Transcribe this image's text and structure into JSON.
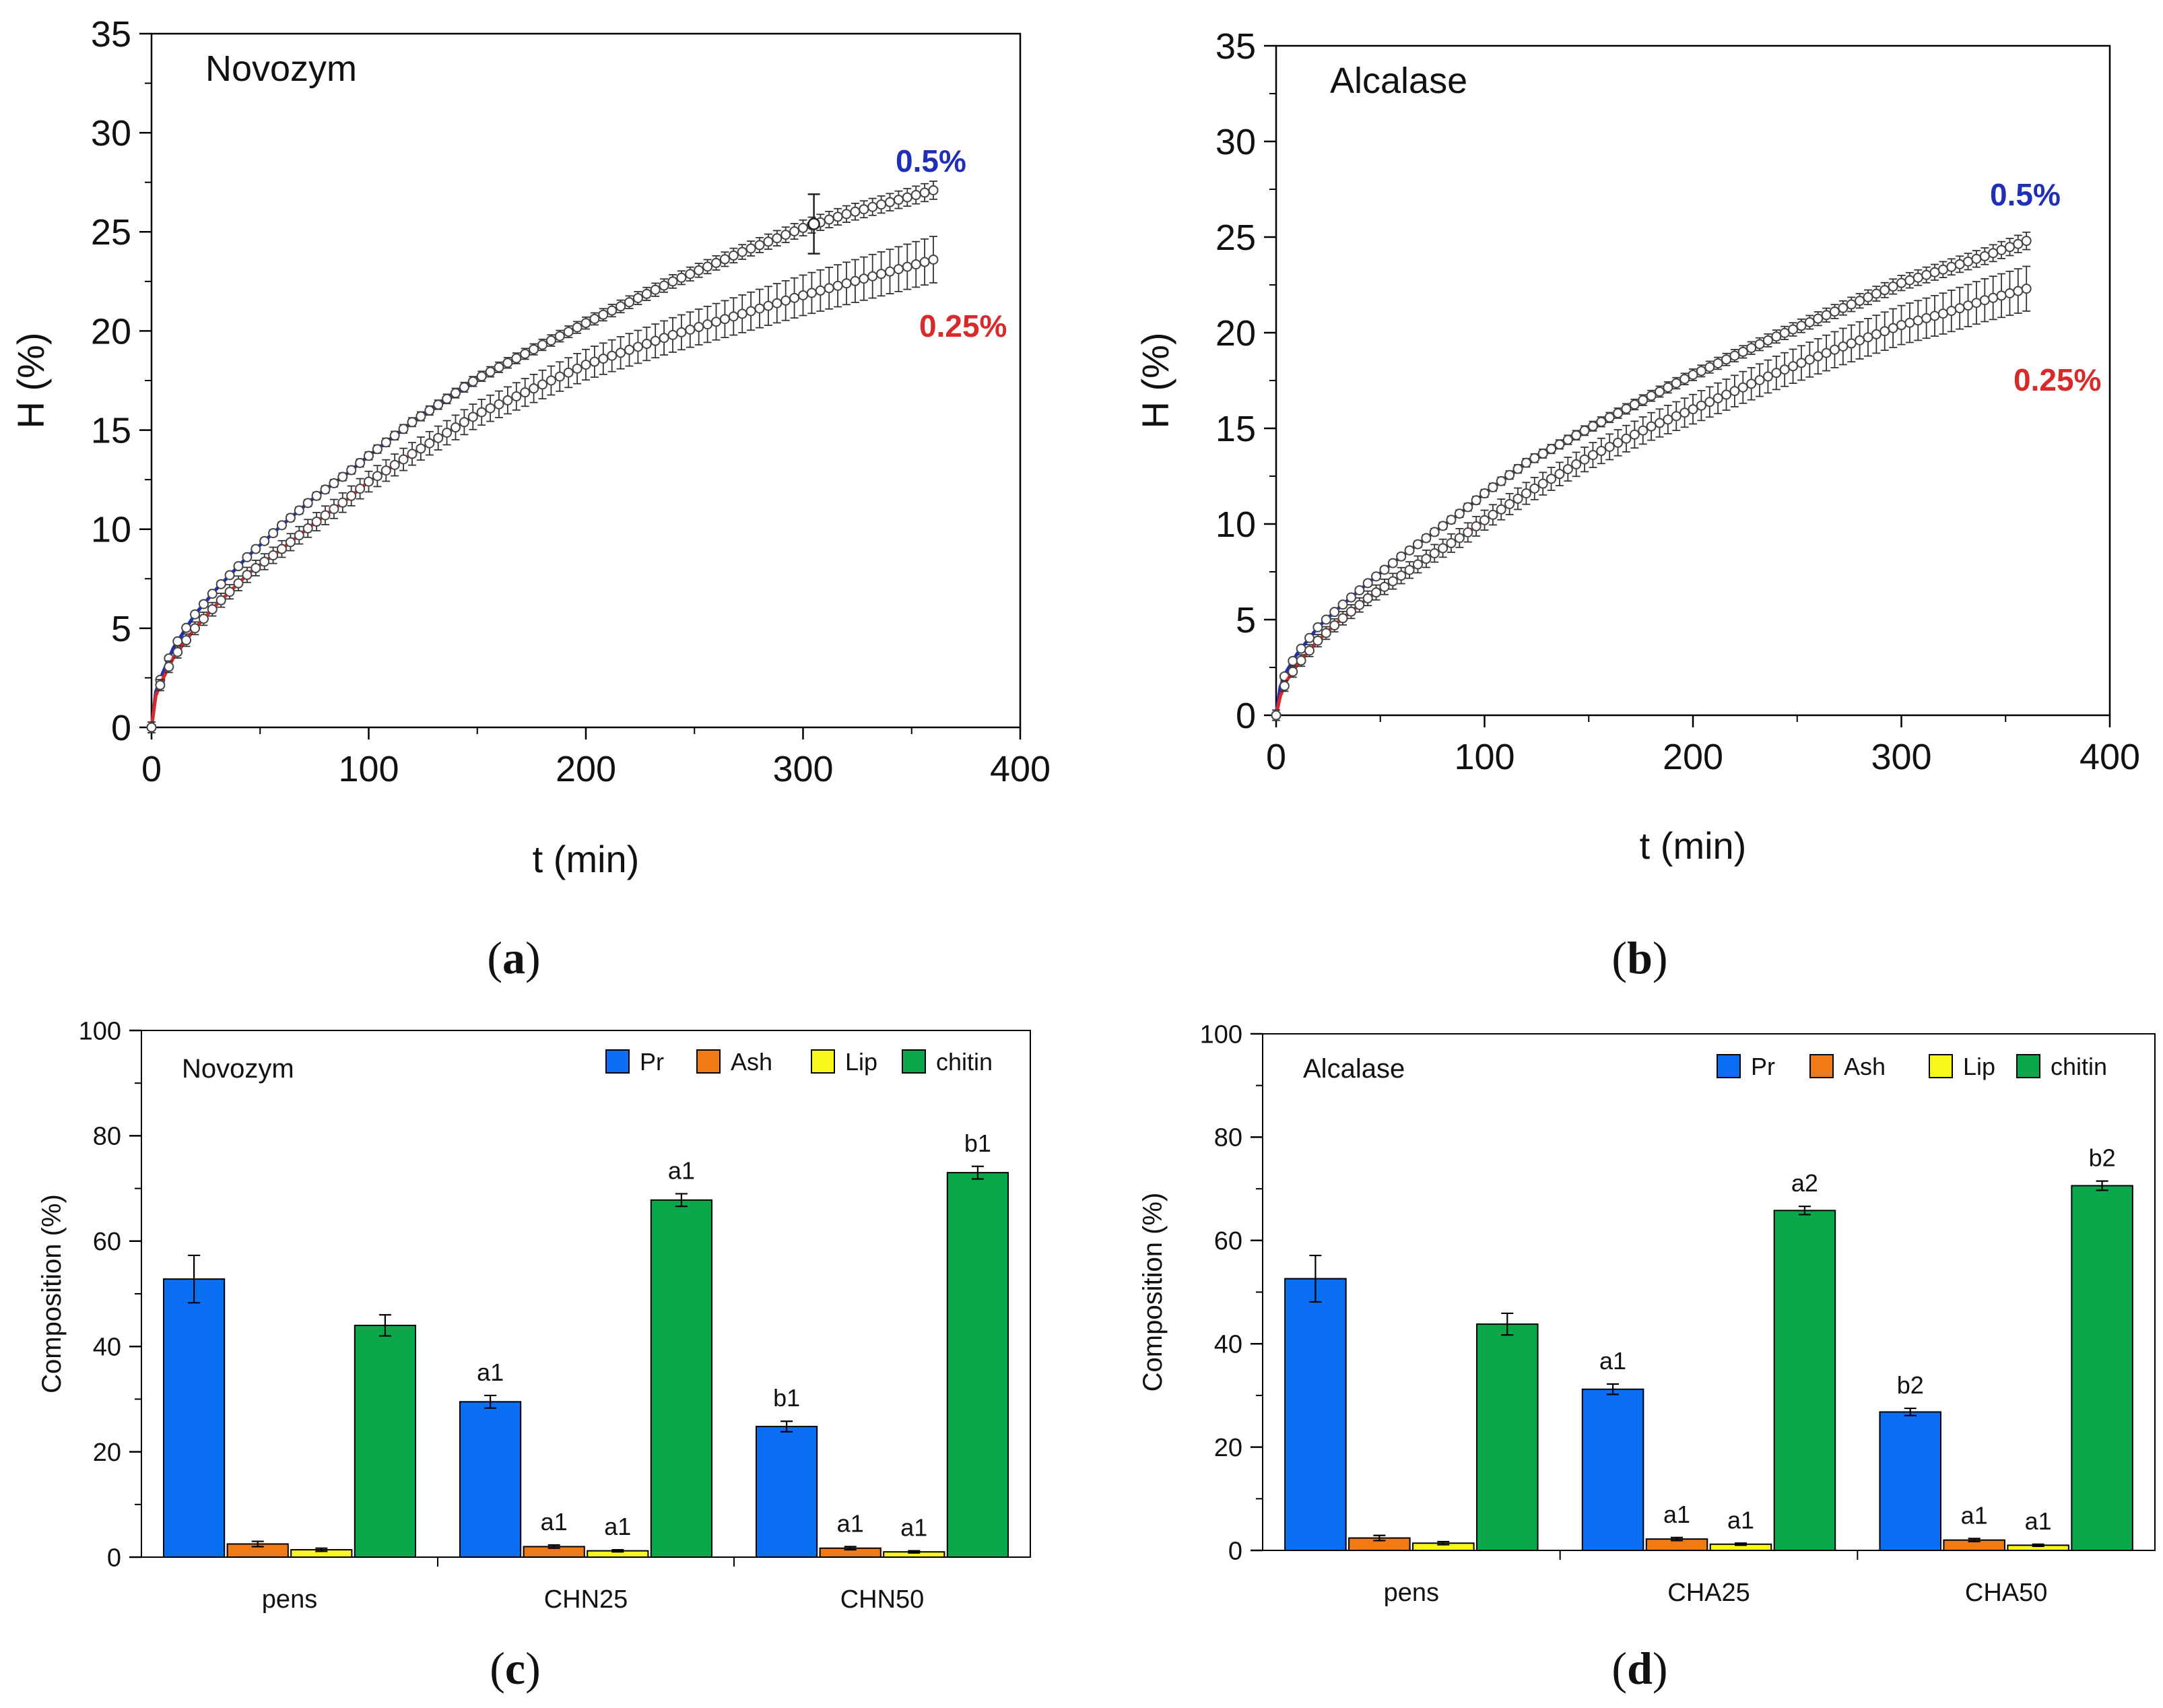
{
  "chart_data": [
    {
      "type": "line",
      "panel": "(a)",
      "panel_letter": "a",
      "title": "Novozym",
      "xlabel": "t (min)",
      "ylabel": "H (%)",
      "xlim": [
        0,
        400
      ],
      "ylim": [
        0,
        35
      ],
      "xticks": [
        0,
        100,
        200,
        300,
        400
      ],
      "yticks": [
        0,
        5,
        10,
        15,
        20,
        25,
        30,
        35
      ],
      "legend": "inline labels at right end of curves",
      "series": [
        {
          "name": "0.5%",
          "color": "#1f2fb8",
          "x": [
            0,
            2,
            5,
            10,
            20,
            30,
            45,
            60,
            75,
            90,
            100,
            120,
            150,
            180,
            200,
            240,
            270,
            300,
            320,
            340,
            360
          ],
          "y": [
            0,
            1.8,
            2.7,
            4.0,
            5.7,
            7.0,
            8.7,
            10.2,
            11.6,
            12.8,
            13.7,
            15.4,
            17.6,
            19.3,
            20.4,
            22.5,
            23.9,
            25.2,
            25.9,
            26.5,
            27.1
          ]
        },
        {
          "name": "0.25%",
          "color": "#d82a2a",
          "x": [
            0,
            2,
            5,
            10,
            20,
            30,
            45,
            60,
            75,
            90,
            100,
            120,
            150,
            180,
            200,
            240,
            270,
            300,
            320,
            340,
            360
          ],
          "y": [
            0,
            1.6,
            2.4,
            3.5,
            5.0,
            6.2,
            7.8,
            9.0,
            10.3,
            11.5,
            12.4,
            13.8,
            15.8,
            17.3,
            18.3,
            19.8,
            20.8,
            21.8,
            22.4,
            23.0,
            23.6
          ]
        }
      ],
      "error_bar_points": [
        {
          "series": "0.5%",
          "x": 305,
          "y": 25.4,
          "err": 1.5
        }
      ]
    },
    {
      "type": "line",
      "panel": "(b)",
      "panel_letter": "b",
      "title": "Alcalase",
      "xlabel": "t (min)",
      "ylabel": "H (%)",
      "xlim": [
        0,
        400
      ],
      "ylim": [
        0,
        35
      ],
      "xticks": [
        0,
        100,
        200,
        300,
        400
      ],
      "yticks": [
        0,
        5,
        10,
        15,
        20,
        25,
        30,
        35
      ],
      "legend": "inline labels at right end of curves",
      "series": [
        {
          "name": "0.5%",
          "color": "#1f2fb8",
          "x": [
            0,
            2,
            5,
            10,
            20,
            30,
            45,
            60,
            75,
            90,
            100,
            120,
            150,
            180,
            200,
            240,
            270,
            300,
            320,
            340,
            360
          ],
          "y": [
            0,
            1.5,
            2.3,
            3.2,
            4.6,
            5.6,
            7.0,
            8.3,
            9.5,
            10.7,
            11.6,
            13.2,
            15.0,
            16.7,
            17.8,
            19.8,
            21.2,
            22.6,
            23.3,
            24.0,
            24.8
          ]
        },
        {
          "name": "0.25%",
          "color": "#d82a2a",
          "x": [
            0,
            2,
            5,
            10,
            20,
            30,
            45,
            60,
            75,
            90,
            100,
            120,
            150,
            180,
            200,
            240,
            270,
            300,
            320,
            340,
            360
          ],
          "y": [
            0,
            1.0,
            1.8,
            2.6,
            3.9,
            4.9,
            6.2,
            7.3,
            8.4,
            9.4,
            10.2,
            11.6,
            13.5,
            15.1,
            16.0,
            17.9,
            19.2,
            20.4,
            21.0,
            21.7,
            22.3
          ]
        }
      ]
    },
    {
      "type": "bar",
      "panel": "(c)",
      "panel_letter": "c",
      "title": "Novozym",
      "xlabel": "",
      "ylabel": "Composition (%)",
      "ylim": [
        0,
        100
      ],
      "yticks": [
        0,
        20,
        40,
        60,
        80,
        100
      ],
      "legend": "top-right",
      "categories": [
        "pens",
        "CHN25",
        "CHN50"
      ],
      "series": [
        {
          "name": "Pr",
          "color": "#0b6ff4",
          "values": [
            52.8,
            29.5,
            24.8
          ],
          "errors": [
            4.5,
            1.2,
            1.0
          ],
          "labels": [
            "",
            "a1",
            "b1"
          ]
        },
        {
          "name": "Ash",
          "color": "#f07a16",
          "values": [
            2.5,
            2.0,
            1.7
          ],
          "errors": [
            0.5,
            0.3,
            0.3
          ],
          "labels": [
            "",
            "a1",
            "a1"
          ]
        },
        {
          "name": "Lip",
          "color": "#f7f71e",
          "values": [
            1.4,
            1.2,
            1.0
          ],
          "errors": [
            0.3,
            0.2,
            0.2
          ],
          "labels": [
            "",
            "a1",
            "a1"
          ]
        },
        {
          "name": "chitin",
          "color": "#0aa84a",
          "values": [
            44.0,
            67.8,
            73.0
          ],
          "errors": [
            2.0,
            1.2,
            1.2
          ],
          "labels": [
            "",
            "a1",
            "b1"
          ]
        }
      ]
    },
    {
      "type": "bar",
      "panel": "(d)",
      "panel_letter": "d",
      "title": "Alcalase",
      "xlabel": "",
      "ylabel": "Composition (%)",
      "ylim": [
        0,
        100
      ],
      "yticks": [
        0,
        20,
        40,
        60,
        80,
        100
      ],
      "legend": "top-right",
      "categories": [
        "pens",
        "CHA25",
        "CHA50"
      ],
      "series": [
        {
          "name": "Pr",
          "color": "#0b6ff4",
          "values": [
            52.6,
            31.2,
            26.8
          ],
          "errors": [
            4.5,
            1.0,
            0.7
          ],
          "labels": [
            "",
            "a1",
            "b2"
          ]
        },
        {
          "name": "Ash",
          "color": "#f07a16",
          "values": [
            2.4,
            2.2,
            2.0
          ],
          "errors": [
            0.5,
            0.3,
            0.3
          ],
          "labels": [
            "",
            "a1",
            "a1"
          ]
        },
        {
          "name": "Lip",
          "color": "#f7f71e",
          "values": [
            1.4,
            1.2,
            1.0
          ],
          "errors": [
            0.3,
            0.2,
            0.2
          ],
          "labels": [
            "",
            "a1",
            "a1"
          ]
        },
        {
          "name": "chitin",
          "color": "#0aa84a",
          "values": [
            43.8,
            65.8,
            70.6
          ],
          "errors": [
            2.1,
            0.8,
            0.9
          ],
          "labels": [
            "",
            "a2",
            "b2"
          ]
        }
      ]
    }
  ]
}
